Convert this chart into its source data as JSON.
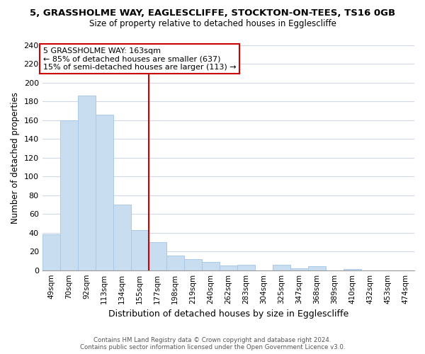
{
  "title": "5, GRASSHOLME WAY, EAGLESCLIFFE, STOCKTON-ON-TEES, TS16 0GB",
  "subtitle": "Size of property relative to detached houses in Egglescliffe",
  "xlabel": "Distribution of detached houses by size in Egglescliffe",
  "ylabel": "Number of detached properties",
  "bar_color": "#c8ddf0",
  "bar_edge_color": "#aac8e8",
  "categories": [
    "49sqm",
    "70sqm",
    "92sqm",
    "113sqm",
    "134sqm",
    "155sqm",
    "177sqm",
    "198sqm",
    "219sqm",
    "240sqm",
    "262sqm",
    "283sqm",
    "304sqm",
    "325sqm",
    "347sqm",
    "368sqm",
    "389sqm",
    "410sqm",
    "432sqm",
    "453sqm",
    "474sqm"
  ],
  "values": [
    38,
    160,
    186,
    166,
    70,
    43,
    30,
    16,
    12,
    9,
    5,
    6,
    0,
    6,
    2,
    4,
    0,
    1,
    0,
    0,
    0
  ],
  "ylim": [
    0,
    240
  ],
  "yticks": [
    0,
    20,
    40,
    60,
    80,
    100,
    120,
    140,
    160,
    180,
    200,
    220,
    240
  ],
  "vline_x": 6.0,
  "vline_color": "#cc0000",
  "annotation_title": "5 GRASSHOLME WAY: 163sqm",
  "annotation_line1": "← 85% of detached houses are smaller (637)",
  "annotation_line2": "15% of semi-detached houses are larger (113) →",
  "footer1": "Contains HM Land Registry data © Crown copyright and database right 2024.",
  "footer2": "Contains public sector information licensed under the Open Government Licence v3.0.",
  "background_color": "#ffffff",
  "grid_color": "#d0d8e8"
}
